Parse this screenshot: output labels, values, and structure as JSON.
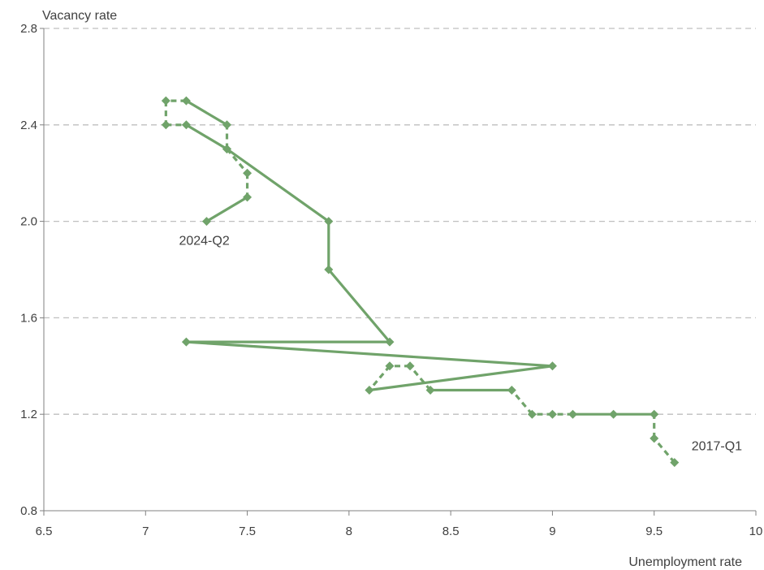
{
  "chart_data": {
    "type": "line",
    "title": "",
    "xlabel": "Unemployment rate",
    "ylabel": "Vacancy rate",
    "xlim": [
      6.5,
      10
    ],
    "ylim": [
      0.8,
      2.8
    ],
    "x_ticks": [
      "6.5",
      "7",
      "7.5",
      "8",
      "8.5",
      "9",
      "9.5",
      "10"
    ],
    "y_ticks": [
      "0.8",
      "1.2",
      "1.6",
      "2.0",
      "2.4",
      "2.8"
    ],
    "grid": "horizontal dashed",
    "line_color": "#70a36a",
    "series": [
      {
        "x": [
          9.6,
          9.5,
          9.5,
          9.3,
          9.1,
          9.0,
          8.9,
          8.8,
          8.4,
          8.3,
          8.2,
          8.1,
          9.0,
          7.2,
          8.2,
          7.9,
          7.9,
          7.4,
          7.4,
          7.2,
          7.1,
          7.1,
          7.2,
          7.4,
          7.5,
          7.5,
          7.3
        ],
        "y": [
          1.0,
          1.1,
          1.2,
          1.2,
          1.2,
          1.2,
          1.2,
          1.3,
          1.3,
          1.4,
          1.4,
          1.3,
          1.4,
          1.5,
          1.5,
          1.8,
          2.0,
          2.3,
          2.4,
          2.5,
          2.5,
          2.4,
          2.4,
          2.3,
          2.2,
          2.1,
          2.0
        ]
      }
    ],
    "annotations": [
      {
        "text": "2017-Q1",
        "x": 9.6,
        "y": 1.0
      },
      {
        "text": "2024-Q2",
        "x": 7.3,
        "y": 2.0
      }
    ]
  }
}
